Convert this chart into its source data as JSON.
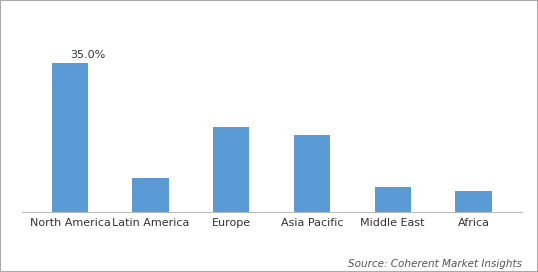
{
  "categories": [
    "North America",
    "Latin America",
    "Europe",
    "Asia Pacific",
    "Middle East",
    "Africa"
  ],
  "values": [
    35.0,
    8.0,
    20.0,
    18.0,
    6.0,
    5.0
  ],
  "bar_color": "#5b9bd5",
  "annotation_label": "35.0%",
  "annotation_index": 0,
  "source_text": "Source: Coherent Market Insights",
  "ylim": [
    0,
    42
  ],
  "background_color": "#ffffff",
  "grid_color": "#d9d9d9",
  "border_color": "#aaaaaa",
  "annotation_fontsize": 8,
  "source_fontsize": 7.5,
  "tick_fontsize": 8,
  "bar_width": 0.45
}
